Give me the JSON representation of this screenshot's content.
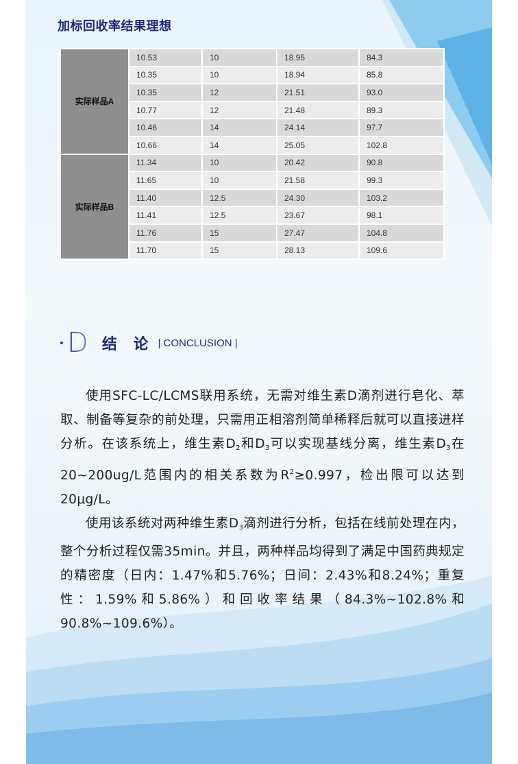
{
  "title": "加标回收率结果理想",
  "table": {
    "groups": [
      {
        "label": "实际样品A",
        "rows": [
          [
            "10.53",
            "10",
            "18.95",
            "84.3"
          ],
          [
            "10.35",
            "10",
            "18.94",
            "85.8"
          ],
          [
            "10.35",
            "12",
            "21.51",
            "93.0"
          ],
          [
            "10.77",
            "12",
            "21.48",
            "89.3"
          ],
          [
            "10.46",
            "14",
            "24.14",
            "97.7"
          ],
          [
            "10.66",
            "14",
            "25.05",
            "102.8"
          ]
        ]
      },
      {
        "label": "实际样品B",
        "rows": [
          [
            "11.34",
            "10",
            "20.42",
            "90.8"
          ],
          [
            "11.65",
            "10",
            "21.58",
            "99.3"
          ],
          [
            "11.40",
            "12.5",
            "24.30",
            "103.2"
          ],
          [
            "11.41",
            "12.5",
            "23.67",
            "98.1"
          ],
          [
            "11.76",
            "15",
            "27.47",
            "104.8"
          ],
          [
            "11.70",
            "15",
            "28.13",
            "109.6"
          ]
        ]
      }
    ]
  },
  "section": {
    "letter": "D",
    "title": "结 论",
    "subtitle": "| CONCLUSION |"
  },
  "paragraphs": [
    [
      {
        "t": "使用SFC-LC/LCMS联用系统，无需对维生素D滴剂进行皂化、萃取、制备等复杂的前处理，只需用正相溶剂简单稀释后就可以直接进样分析。在该系统上，维生素D"
      },
      {
        "sub": "2"
      },
      {
        "t": "和D"
      },
      {
        "sub": "3"
      },
      {
        "t": "可以实现基线分离，维生素D"
      },
      {
        "sub": "3"
      },
      {
        "t": "在20~200ug/L范围内的相关系数为R"
      },
      {
        "sup": "2"
      },
      {
        "t": "≥0.997，检出限可以达到20μg/L。"
      }
    ],
    [
      {
        "t": "使用该系统对两种维生素D"
      },
      {
        "sub": "3"
      },
      {
        "t": "滴剂进行分析，包括在线前处理在内，整个分析过程仅需35min。并且，两种样品均得到了满足中国药典规定的精密度（日内：1.47%和5.76%；日间：2.43%和8.24%；重复性：1.59%和5.86%）和回收率结果（84.3%~102.8%和90.8%~109.6%）。"
      }
    ]
  ],
  "colors": {
    "heading": "#1f2a7a",
    "group_cell": "#8e8e8e",
    "row_dark": "#d9d9d9",
    "row_light": "#ececec"
  }
}
